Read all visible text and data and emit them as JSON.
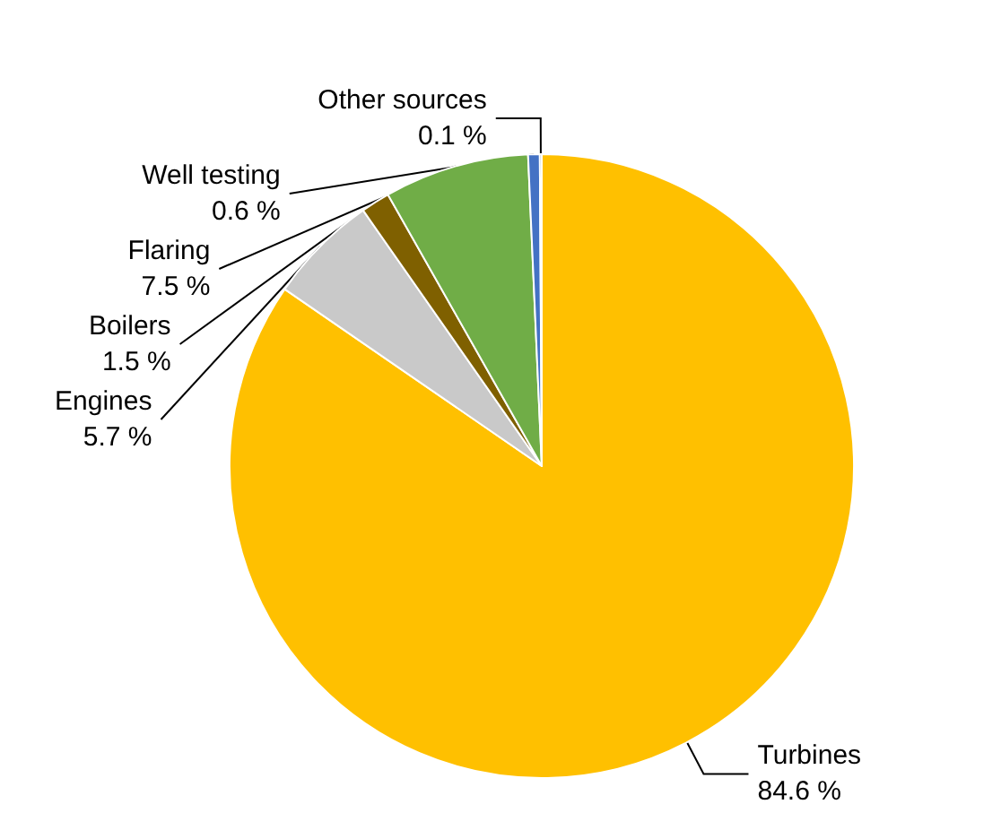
{
  "chart_data": {
    "type": "pie",
    "categories": [
      "Turbines",
      "Engines",
      "Boilers",
      "Flaring",
      "Well testing",
      "Other sources"
    ],
    "values": [
      84.6,
      5.7,
      1.5,
      7.5,
      0.6,
      0.1
    ],
    "colors": [
      "#ffc000",
      "#c9c9c9",
      "#7f6000",
      "#70ad47",
      "#4472c4",
      "#255e91"
    ],
    "value_labels": [
      "84.6 %",
      "5.7 %",
      "1.5 %",
      "7.5 %",
      "0.6 %",
      "0.1 %"
    ],
    "legend": false
  }
}
